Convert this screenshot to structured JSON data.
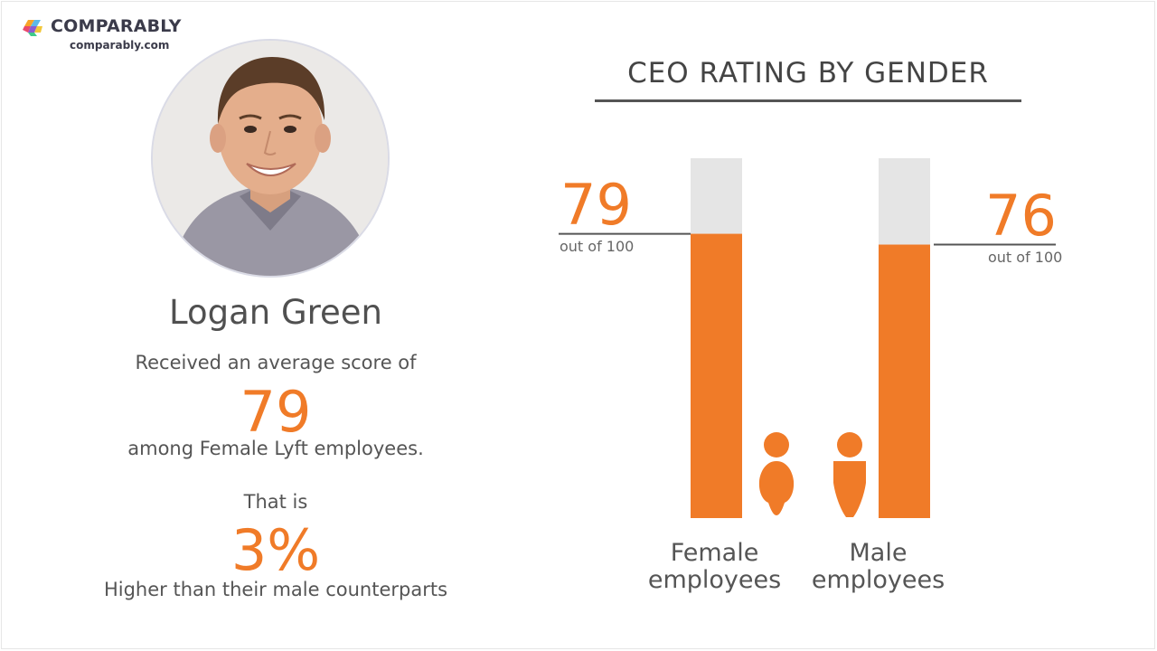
{
  "brand": {
    "name": "COMPARABLY",
    "url": "comparably.com"
  },
  "person": {
    "name": "Logan Green"
  },
  "summary": {
    "line1": "Received an average score of",
    "score": "79",
    "line2": "among Female Lyft employees.",
    "line3": "That is",
    "percent": "3%",
    "line4": "Higher than their male counterparts"
  },
  "colors": {
    "accent": "#f07b28",
    "track": "#e5e5e5",
    "text": "#555555"
  },
  "chart_data": {
    "type": "bar",
    "title": "CEO RATING BY GENDER",
    "categories": [
      "Female employees",
      "Male employees"
    ],
    "values": [
      79,
      76
    ],
    "value_labels": [
      "79",
      "76"
    ],
    "value_suffix": "out of 100",
    "ylim": [
      0,
      100
    ],
    "grid": false,
    "legend": "none",
    "icons": [
      "female-person-icon",
      "male-person-icon"
    ]
  }
}
